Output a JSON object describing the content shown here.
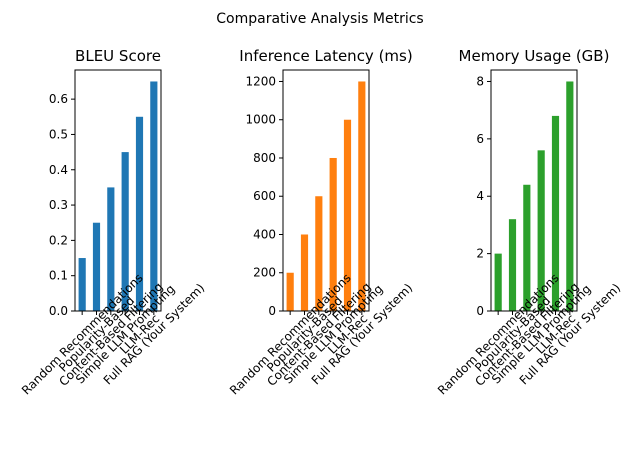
{
  "figure": {
    "title": "Comparative Analysis Metrics"
  },
  "chart_data": [
    {
      "type": "bar",
      "title": "BLEU Score",
      "xlabel": "",
      "ylabel": "",
      "categories": [
        "Random Recommendations",
        "Popularity-Based",
        "Content-Based Filtering",
        "Simple LLM Prompting",
        "LLM-Rec",
        "Full RAG (Your System)"
      ],
      "values": [
        0.15,
        0.25,
        0.35,
        0.45,
        0.55,
        0.65
      ],
      "ylim": [
        0,
        0.6825
      ],
      "yticks": [
        0.0,
        0.1,
        0.2,
        0.3,
        0.4,
        0.5,
        0.6
      ],
      "ytick_labels": [
        "0.0",
        "0.1",
        "0.2",
        "0.3",
        "0.4",
        "0.5",
        "0.6"
      ],
      "color": "#1f77b4",
      "grid": false
    },
    {
      "type": "bar",
      "title": "Inference Latency (ms)",
      "xlabel": "",
      "ylabel": "",
      "categories": [
        "Random Recommendations",
        "Popularity-Based",
        "Content-Based Filtering",
        "Simple LLM Prompting",
        "LLM-Rec",
        "Full RAG (Your System)"
      ],
      "values": [
        200,
        400,
        600,
        800,
        1000,
        1200
      ],
      "ylim": [
        0,
        1260
      ],
      "yticks": [
        0,
        200,
        400,
        600,
        800,
        1000,
        1200
      ],
      "ytick_labels": [
        "0",
        "200",
        "400",
        "600",
        "800",
        "1000",
        "1200"
      ],
      "color": "#ff7f0e",
      "grid": false
    },
    {
      "type": "bar",
      "title": "Memory Usage (GB)",
      "xlabel": "",
      "ylabel": "",
      "categories": [
        "Random Recommendations",
        "Popularity-Based",
        "Content-Based Filtering",
        "Simple LLM Prompting",
        "LLM-Rec",
        "Full RAG (Your System)"
      ],
      "values": [
        2.0,
        3.2,
        4.4,
        5.6,
        6.8,
        8.0
      ],
      "ylim": [
        0,
        8.4
      ],
      "yticks": [
        0,
        2,
        4,
        6,
        8
      ],
      "ytick_labels": [
        "0",
        "2",
        "4",
        "6",
        "8"
      ],
      "color": "#2ca02c",
      "grid": false
    }
  ]
}
